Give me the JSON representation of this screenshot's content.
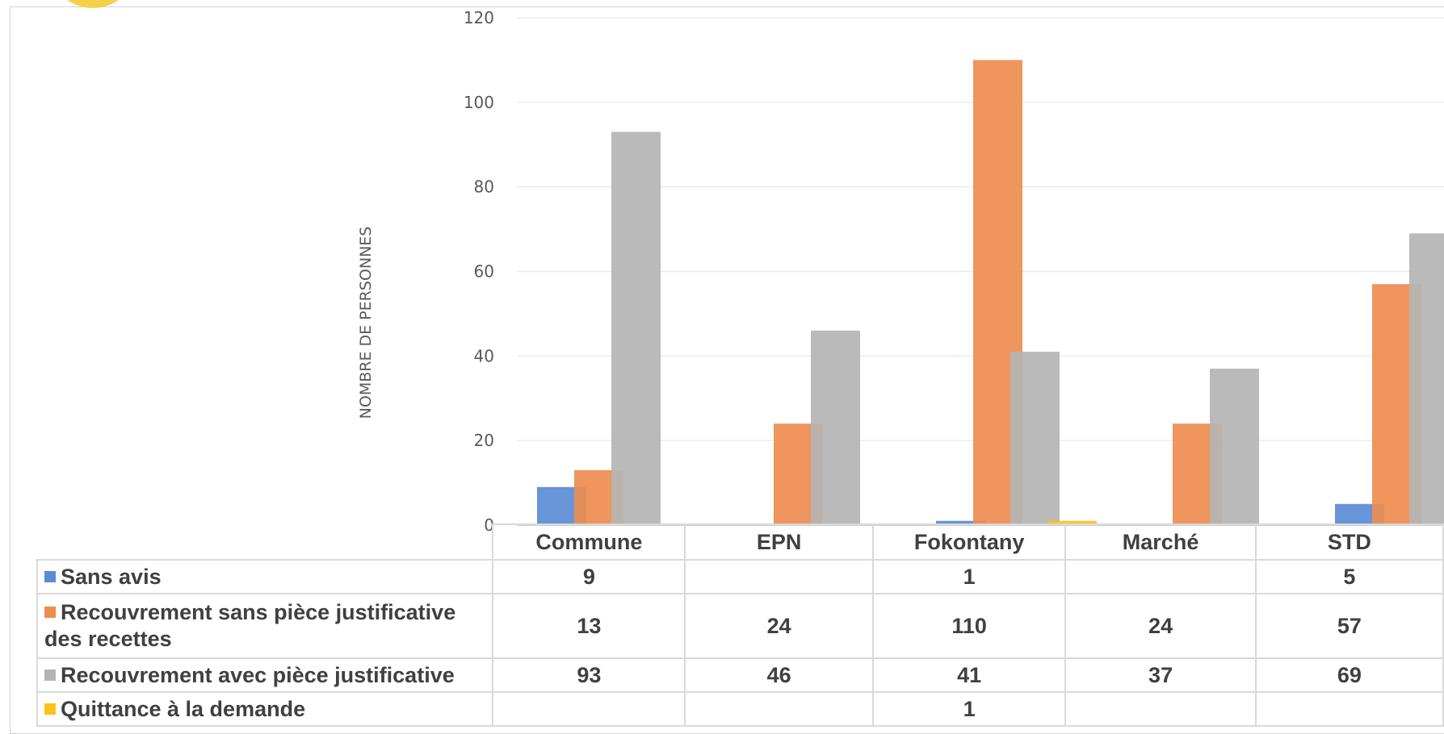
{
  "chart_data": {
    "type": "bar",
    "title": "",
    "xlabel": "",
    "ylabel": "NOMBRE DE PERSONNES",
    "ylim": [
      0,
      120
    ],
    "yticks": [
      0,
      20,
      40,
      60,
      80,
      100,
      120
    ],
    "grid": true,
    "legend": "data-table-below",
    "categories": [
      "Commune",
      "EPN",
      "Fokontany",
      "Marché",
      "STD"
    ],
    "series": [
      {
        "name": "Sans avis",
        "color": "#5b8bd5",
        "values": [
          9,
          null,
          1,
          null,
          5
        ]
      },
      {
        "name": "Recouvrement sans pièce justificative des recettes",
        "color": "#ed8d4f",
        "values": [
          13,
          24,
          110,
          24,
          57
        ]
      },
      {
        "name": "Recouvrement avec pièce justificative",
        "color": "#b4b4b4",
        "values": [
          93,
          46,
          41,
          37,
          69
        ]
      },
      {
        "name": "Quittance à la demande",
        "color": "#fcc21b",
        "values": [
          null,
          null,
          1,
          null,
          null
        ]
      }
    ]
  },
  "colors": {
    "grid": "#ececec",
    "axis": "#d0d0d0",
    "badge": "#f7cf4b"
  }
}
